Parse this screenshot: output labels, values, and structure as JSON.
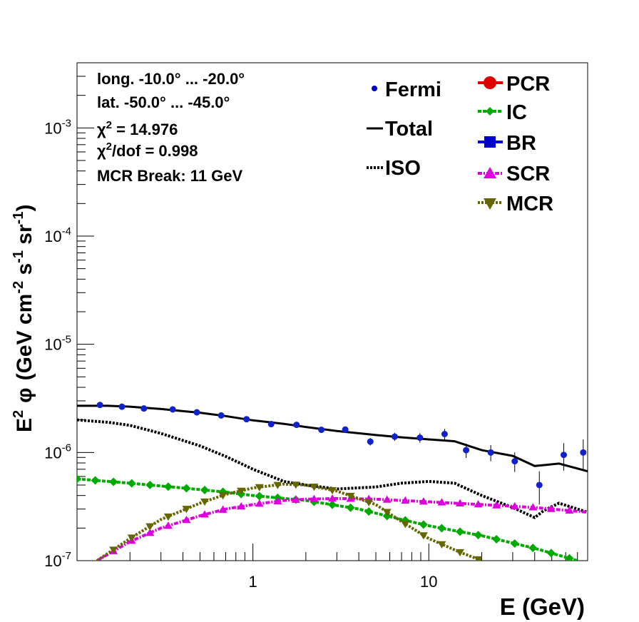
{
  "chart_data": {
    "type": "line",
    "xlabel": "E (GeV)",
    "ylabel": {
      "lead": "E",
      "lead_sup": "2",
      "phi": "φ",
      "p1": "(GeV cm",
      "sup1": "-2",
      "p2": " s",
      "sup2": "-1",
      "p3": " sr",
      "sup3": "-1",
      "p4": ")"
    },
    "xscale": "log",
    "yscale": "log",
    "xlim": [
      0.1,
      80
    ],
    "ylim": [
      1e-07,
      0.004
    ],
    "x_ticks": [
      {
        "value": 1,
        "label": "1"
      },
      {
        "value": 10,
        "label": "10"
      }
    ],
    "y_ticks": [
      {
        "value": 1e-07,
        "base": "10",
        "exp": "-7"
      },
      {
        "value": 1e-06,
        "base": "10",
        "exp": "-6"
      },
      {
        "value": 1e-05,
        "base": "10",
        "exp": "-5"
      },
      {
        "value": 0.0001,
        "base": "10",
        "exp": "-4"
      },
      {
        "value": 0.001,
        "base": "10",
        "exp": "-3"
      }
    ],
    "annotations": {
      "line1": "long. -10.0° ... -20.0°",
      "line2": "lat. -50.0° ... -45.0°",
      "line3_sym": "χ",
      "line3_sup": "2",
      "line3_rest": " = 14.976",
      "line4_sym": "χ",
      "line4_sup": "2",
      "line4_rest": "/dof = 0.998",
      "line5": "MCR Break: 11 GeV"
    },
    "legend": {
      "placement": "top-right",
      "entries_left": [
        {
          "label": "Fermi",
          "style": "point",
          "color": "#0000cc"
        },
        {
          "label": "Total",
          "style": "solid",
          "color": "#000000"
        },
        {
          "label": "ISO",
          "style": "dotted",
          "color": "#000000"
        }
      ],
      "entries_right": [
        {
          "label": "PCR",
          "style": "circle",
          "color": "#dd0000"
        },
        {
          "label": "IC",
          "style": "diamond",
          "color": "#00aa00"
        },
        {
          "label": "BR",
          "style": "square",
          "color": "#0000cc"
        },
        {
          "label": "SCR",
          "style": "triangle-up",
          "color": "#dd00dd"
        },
        {
          "label": "MCR",
          "style": "triangle-down",
          "color": "#666600"
        }
      ]
    },
    "series": [
      {
        "name": "Fermi",
        "style": "points",
        "color": "#1122cc",
        "points": [
          {
            "x": 0.135,
            "y": 2.75e-06,
            "err": 5e-08
          },
          {
            "x": 0.18,
            "y": 2.65e-06,
            "err": 5e-08
          },
          {
            "x": 0.24,
            "y": 2.55e-06,
            "err": 5e-08
          },
          {
            "x": 0.35,
            "y": 2.5e-06,
            "err": 5e-08
          },
          {
            "x": 0.48,
            "y": 2.35e-06,
            "err": 5e-08
          },
          {
            "x": 0.66,
            "y": 2.2e-06,
            "err": 5e-08
          },
          {
            "x": 0.92,
            "y": 2.03e-06,
            "err": 6e-08
          },
          {
            "x": 1.27,
            "y": 1.83e-06,
            "err": 6e-08
          },
          {
            "x": 1.77,
            "y": 1.8e-06,
            "err": 7e-08
          },
          {
            "x": 2.45,
            "y": 1.62e-06,
            "err": 7e-08
          },
          {
            "x": 3.35,
            "y": 1.63e-06,
            "err": 8e-08
          },
          {
            "x": 4.65,
            "y": 1.26e-06,
            "err": 1e-07
          },
          {
            "x": 6.4,
            "y": 1.4e-06,
            "err": 1.2e-07
          },
          {
            "x": 8.9,
            "y": 1.37e-06,
            "err": 1.4e-07
          },
          {
            "x": 12.3,
            "y": 1.48e-06,
            "err": 1.7e-07
          },
          {
            "x": 16.3,
            "y": 1.05e-06,
            "err": 1.6e-07
          },
          {
            "x": 22.5,
            "y": 1e-06,
            "err": 1.7e-07
          },
          {
            "x": 30.8,
            "y": 8.3e-07,
            "err": 1.7e-07
          },
          {
            "x": 42.5,
            "y": 5e-07,
            "err": 1.7e-07
          },
          {
            "x": 58.5,
            "y": 9.5e-07,
            "err": 2.7e-07
          },
          {
            "x": 75.5,
            "y": 1e-06,
            "err": 3.2e-07
          }
        ]
      },
      {
        "name": "Total",
        "style": "solid",
        "color": "#000000",
        "x": [
          0.1,
          0.15,
          0.2,
          0.3,
          0.5,
          0.7,
          1.0,
          1.5,
          2.0,
          3.0,
          5.0,
          7.0,
          10,
          14,
          20,
          30,
          40,
          55,
          80
        ],
        "y": [
          2.7e-06,
          2.7e-06,
          2.65e-06,
          2.52e-06,
          2.33e-06,
          2.17e-06,
          1.98e-06,
          1.84e-06,
          1.72e-06,
          1.58e-06,
          1.45e-06,
          1.38e-06,
          1.32e-06,
          1.27e-06,
          1.05e-06,
          9.3e-07,
          7.5e-07,
          7.9e-07,
          6.7e-07
        ]
      },
      {
        "name": "ISO",
        "style": "dotted",
        "color": "#000000",
        "x": [
          0.1,
          0.15,
          0.2,
          0.3,
          0.5,
          0.7,
          1.0,
          1.5,
          2.0,
          3.0,
          5.0,
          7.0,
          10,
          14,
          20,
          30,
          40,
          45,
          55,
          70,
          80
        ],
        "y": [
          2e-06,
          1.9e-06,
          1.78e-06,
          1.5e-06,
          1.15e-06,
          9.2e-07,
          7e-07,
          5.4e-07,
          5e-07,
          4.6e-07,
          4.8e-07,
          5.2e-07,
          5.4e-07,
          5.2e-07,
          4e-07,
          3.1e-07,
          2.5e-07,
          2.9e-07,
          3.4e-07,
          3e-07,
          2.8e-07
        ]
      },
      {
        "name": "IC",
        "style": "marker-line",
        "color": "#00aa00",
        "x": [
          0.1,
          0.2,
          0.4,
          0.7,
          1.0,
          2.0,
          4.0,
          7.0,
          10,
          20,
          40,
          70
        ],
        "y": [
          5.7e-07,
          5.2e-07,
          4.7e-07,
          4.3e-07,
          4e-07,
          3.6e-07,
          3e-07,
          2.4e-07,
          2.1e-07,
          1.7e-07,
          1.3e-07,
          1e-07
        ]
      },
      {
        "name": "SCR",
        "style": "marker-line",
        "color": "#dd00dd",
        "x": [
          0.13,
          0.2,
          0.3,
          0.5,
          0.7,
          1.0,
          1.5,
          2.0,
          3.0,
          5.0,
          7.0,
          10,
          20,
          40,
          80
        ],
        "y": [
          1e-07,
          1.5e-07,
          2e-07,
          2.6e-07,
          3e-07,
          3.3e-07,
          3.6e-07,
          3.7e-07,
          3.75e-07,
          3.7e-07,
          3.6e-07,
          3.5e-07,
          3.3e-07,
          3.1e-07,
          2.8e-07
        ]
      },
      {
        "name": "MCR",
        "style": "marker-line",
        "color": "#666600",
        "x": [
          0.13,
          0.2,
          0.3,
          0.5,
          0.7,
          1.0,
          1.5,
          2.0,
          3.0,
          5.0,
          7.0,
          10,
          15,
          20
        ],
        "y": [
          1e-07,
          1.6e-07,
          2.4e-07,
          3.4e-07,
          4.1e-07,
          4.7e-07,
          5.1e-07,
          5e-07,
          4.4e-07,
          3.3e-07,
          2.3e-07,
          1.6e-07,
          1.2e-07,
          1e-07
        ]
      }
    ]
  }
}
